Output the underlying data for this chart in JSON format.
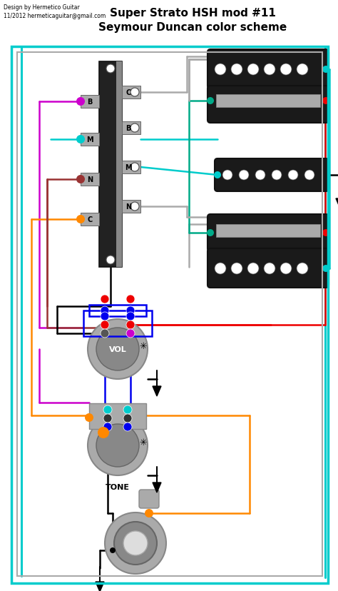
{
  "title_main": "Super Strato HSH mod #11",
  "title_sub": "Seymour Duncan color scheme",
  "credit1": "Design by Hermetico Guitar",
  "credit2": "11/2012 hermeticaguitar@gmail.com",
  "bg": "#ffffff",
  "cyan": "#00cccc",
  "magenta": "#cc00cc",
  "orange": "#ff8800",
  "red": "#ee0000",
  "teal": "#00aa88",
  "blue": "#0000ee",
  "black": "#000000",
  "gray": "#888888",
  "darkgray": "#333333",
  "lightgray": "#cccccc",
  "silver": "#aaaaaa",
  "dark": "#1a1a1a",
  "brown": "#993333",
  "purple": "#884488",
  "white": "#ffffff"
}
